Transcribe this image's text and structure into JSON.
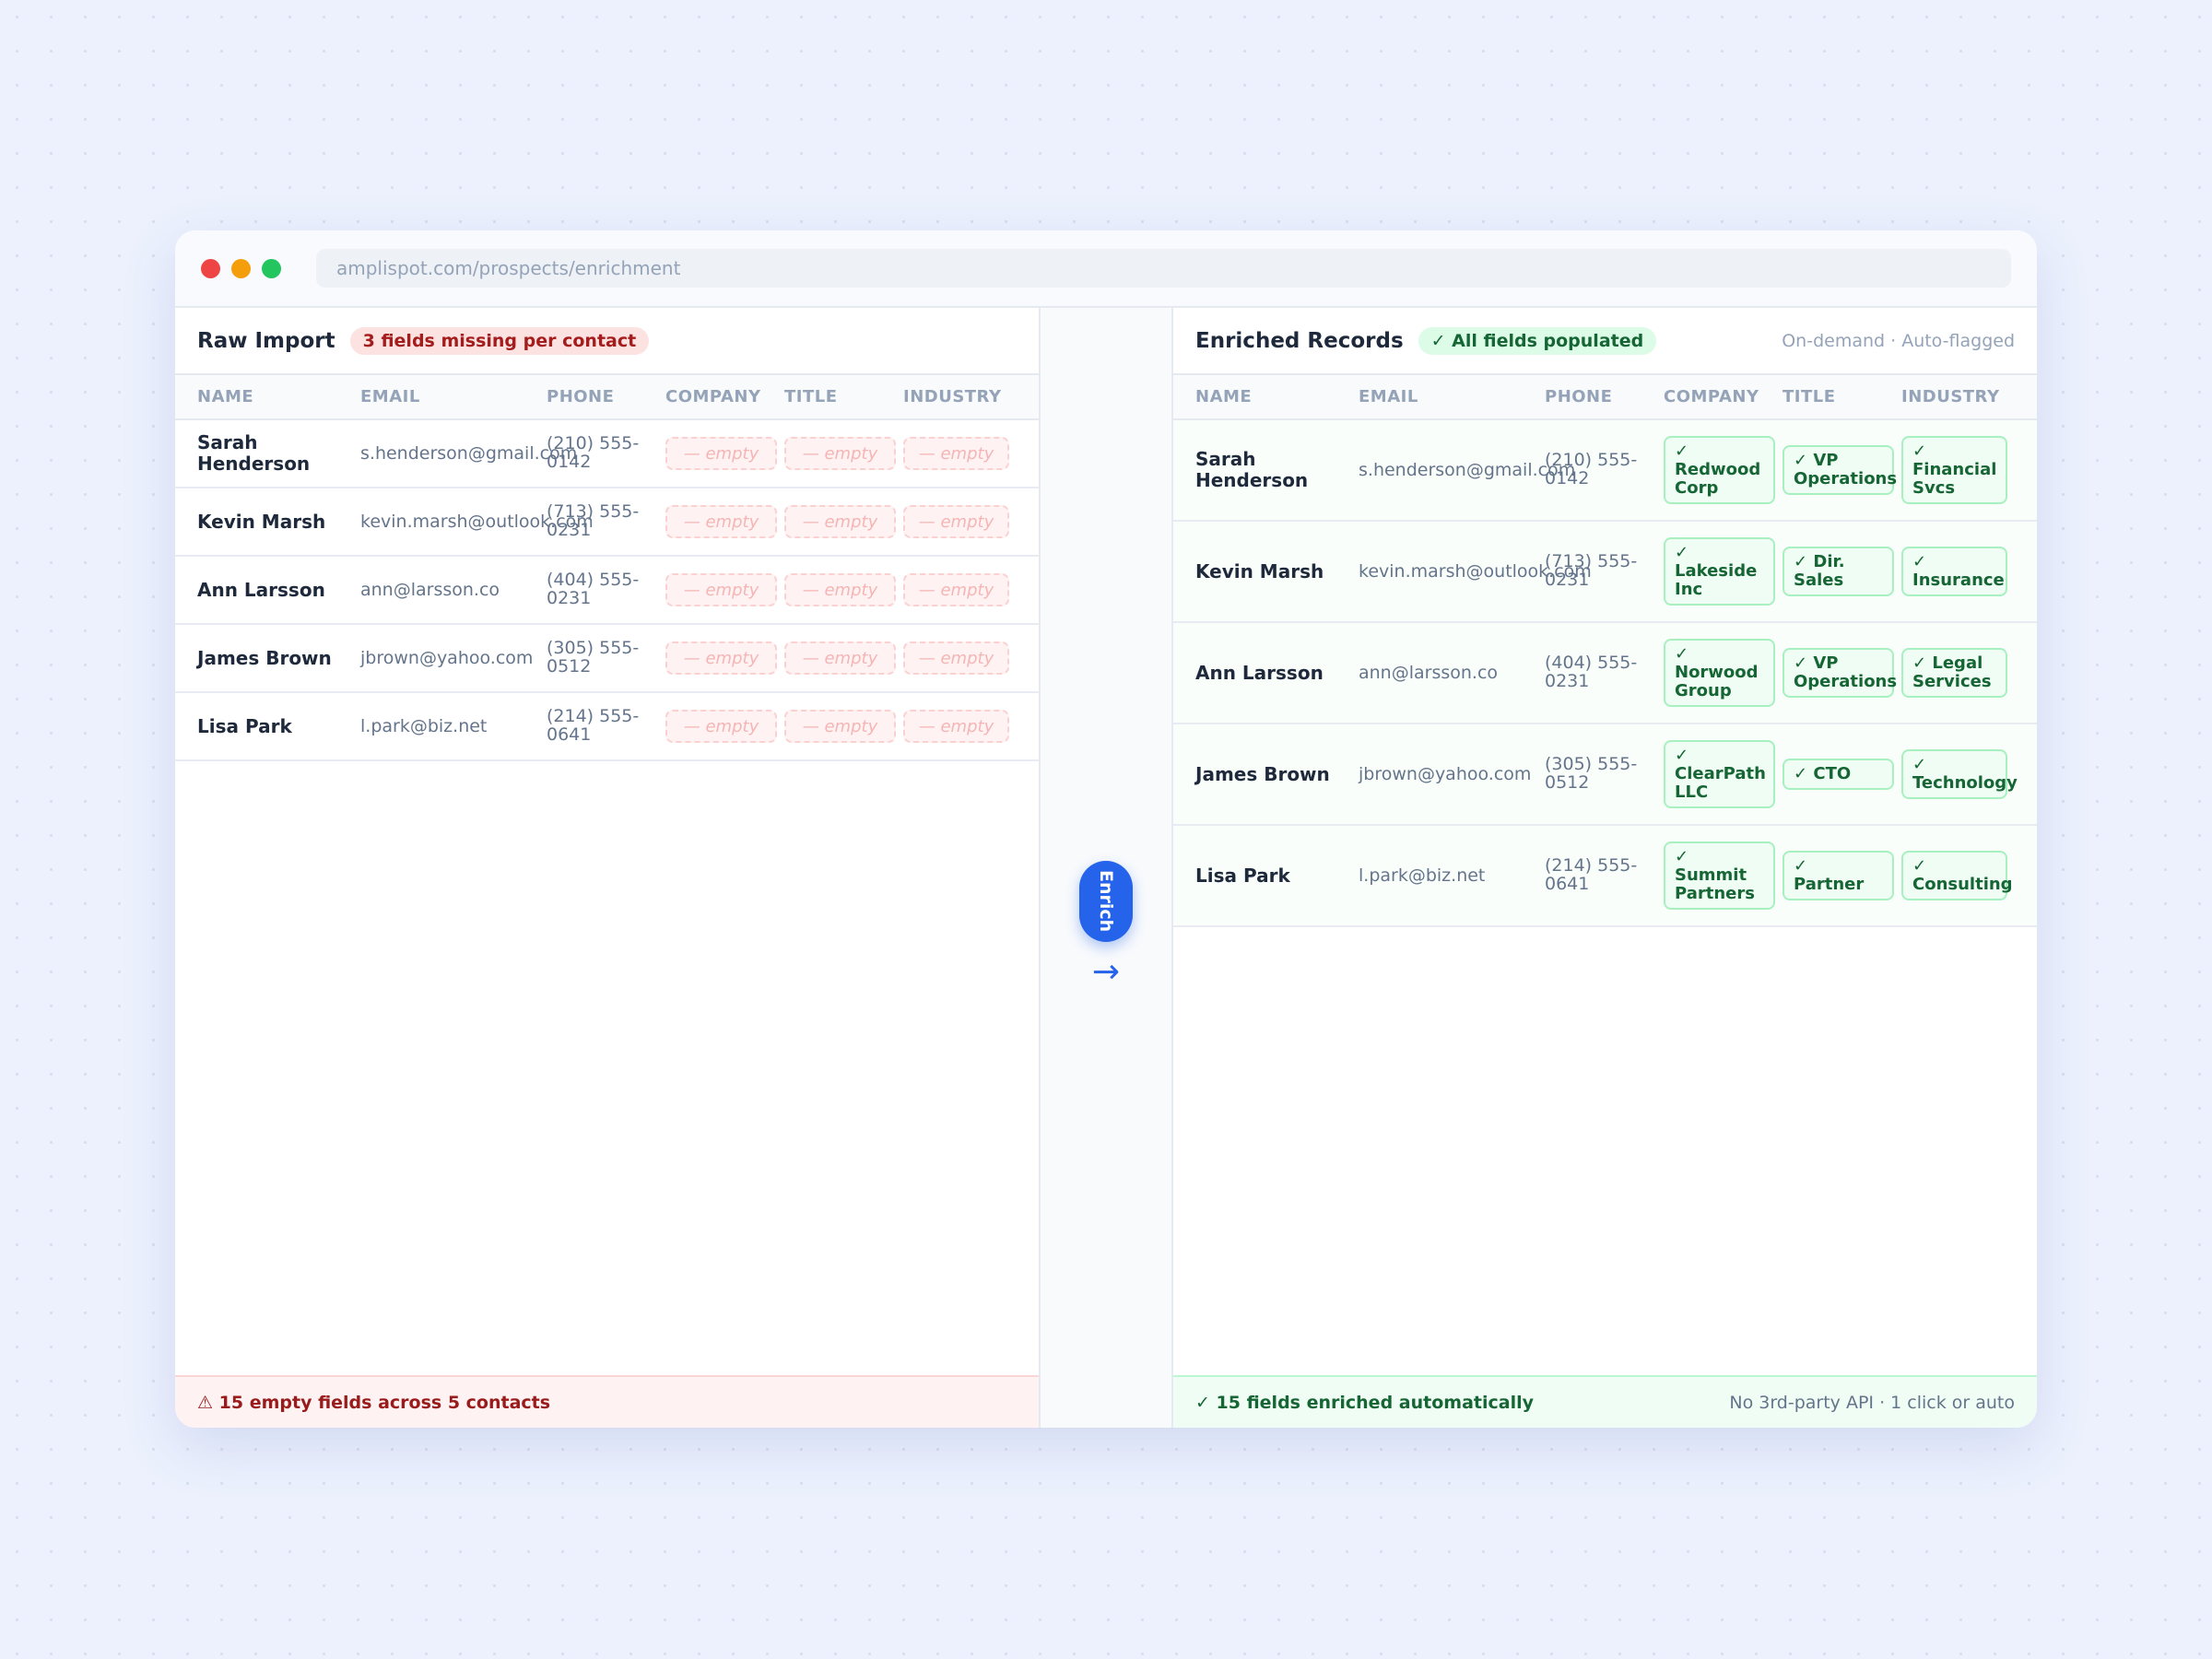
{
  "browser": {
    "url": "amplispot.com/prospects/enrichment"
  },
  "raw": {
    "title": "Raw Import",
    "badge": "3 fields missing per contact",
    "empty_label": "— empty",
    "footer": "⚠ 15 empty fields across 5 contacts"
  },
  "action": {
    "button": "Enrich",
    "arrow": "→"
  },
  "enriched": {
    "title": "Enriched Records",
    "badge": "✓ All fields populated",
    "meta": "On-demand · Auto-flagged",
    "check": "✓",
    "footer_left": "✓ 15 fields enriched automatically",
    "footer_right": "No 3rd-party API · 1 click or auto"
  },
  "columns": [
    "NAME",
    "EMAIL",
    "PHONE",
    "COMPANY",
    "TITLE",
    "INDUSTRY"
  ],
  "contacts": [
    {
      "name": "Sarah Henderson",
      "email": "s.henderson@gmail.com",
      "phone": "(210) 555-0142",
      "company": "Redwood Corp",
      "title": "VP Operations",
      "industry": "Financial Svcs"
    },
    {
      "name": "Kevin Marsh",
      "email": "kevin.marsh@outlook.com",
      "phone": "(713) 555-0231",
      "company": "Lakeside Inc",
      "title": "Dir. Sales",
      "industry": "Insurance"
    },
    {
      "name": "Ann Larsson",
      "email": "ann@larsson.co",
      "phone": "(404) 555-0231",
      "company": "Norwood Group",
      "title": "VP Operations",
      "industry": "Legal Services"
    },
    {
      "name": "James Brown",
      "email": "jbrown@yahoo.com",
      "phone": "(305) 555-0512",
      "company": "ClearPath LLC",
      "title": "CTO",
      "industry": "Technology"
    },
    {
      "name": "Lisa Park",
      "email": "l.park@biz.net",
      "phone": "(214) 555-0641",
      "company": "Summit Partners",
      "title": "Partner",
      "industry": "Consulting"
    }
  ]
}
